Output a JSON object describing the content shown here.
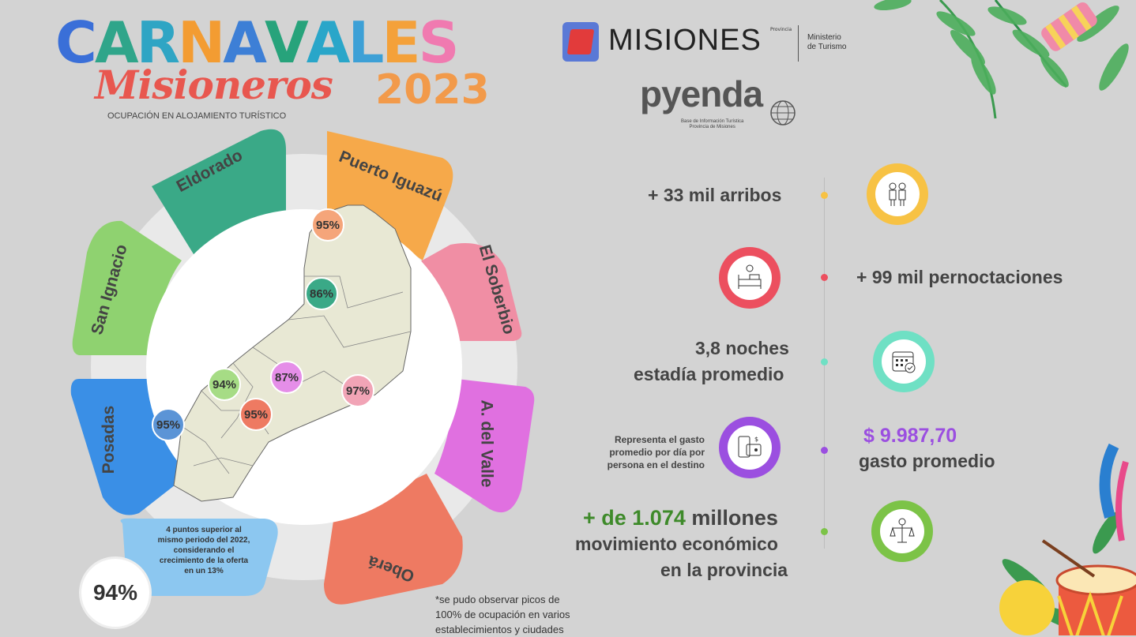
{
  "header": {
    "title_letters": [
      {
        "ch": "C",
        "color": "#3a6fd8"
      },
      {
        "ch": "A",
        "color": "#2fa58a"
      },
      {
        "ch": "R",
        "color": "#2fa5c4"
      },
      {
        "ch": "N",
        "color": "#f39c32"
      },
      {
        "ch": "A",
        "color": "#3d7fd6"
      },
      {
        "ch": "V",
        "color": "#27a37b"
      },
      {
        "ch": "A",
        "color": "#29a6c9"
      },
      {
        "ch": "L",
        "color": "#3da0d6"
      },
      {
        "ch": "E",
        "color": "#f4a13a"
      },
      {
        "ch": "S",
        "color": "#f07ab0"
      }
    ],
    "title": "CARNAVALES",
    "subtitle": "Misioneros",
    "year": "2023",
    "caption": "OCUPACIÓN EN ALOJAMIENTO TURÍSTICO"
  },
  "logos": {
    "misiones": "MISIONES",
    "provincia": "Provincia",
    "ministerio_line1": "Ministerio",
    "ministerio_line2": "de Turismo",
    "pyenda": "pyenda",
    "pyenda_sub1": "Base de Información Turística",
    "pyenda_sub2": "Provincia de Misiones"
  },
  "petals": {
    "eldorado": "Eldorado",
    "puerto_iguazu": "Puerto Iguazú",
    "el_soberbio": "El Soberbio",
    "san_ignacio": "San Ignacio",
    "posadas": "Posadas",
    "a_del_valle": "A. del Valle",
    "obera": "Oberá"
  },
  "map_percentages": {
    "iguazu": "95%",
    "eldorado": "86%",
    "san_ignacio": "94%",
    "valle": "87%",
    "soberbio": "97%",
    "obera": "95%",
    "posadas": "95%"
  },
  "summary": {
    "value": "94%",
    "text": "4 puntos superior al mismo periodo del 2022, considerando el crecimiento de la oferta en un 13%"
  },
  "note": {
    "line1": "*se pudo observar picos de",
    "line2": "100% de ocupación en varios",
    "line3": "establecimientos y ciudades"
  },
  "stats": {
    "arribos": "+ 33 mil arribos",
    "pernoctaciones": "+ 99 mil pernoctaciones",
    "noches": "3,8 noches",
    "estadia": "estadía promedio",
    "gasto_desc_1": "Representa el gasto",
    "gasto_desc_2": "promedio por día por",
    "gasto_desc_3": "persona en el destino",
    "gasto_value": "$ 9.987,70",
    "gasto_label": "gasto promedio",
    "mov_prefix": "+ de 1.074",
    "mov_suffix": " millones",
    "mov_line2": "movimiento económico",
    "mov_line3": "en la provincia"
  },
  "colors": {
    "yellow": "#f7c244",
    "red": "#ec4f5f",
    "mint": "#6fe0c4",
    "purple": "#9b4fe0",
    "green": "#7cc347",
    "green_text": "#3e8a2a",
    "purple_text": "#9b4fe0"
  }
}
